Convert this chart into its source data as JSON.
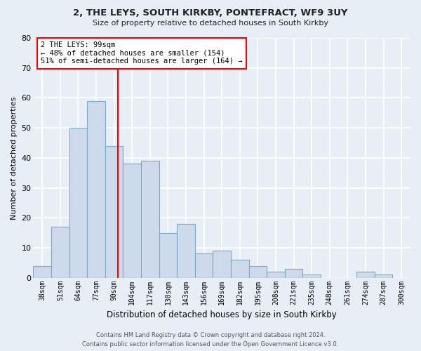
{
  "title_line1": "2, THE LEYS, SOUTH KIRKBY, PONTEFRACT, WF9 3UY",
  "title_line2": "Size of property relative to detached houses in South Kirkby",
  "xlabel": "Distribution of detached houses by size in South Kirkby",
  "ylabel": "Number of detached properties",
  "bar_labels": [
    "38sqm",
    "51sqm",
    "64sqm",
    "77sqm",
    "90sqm",
    "104sqm",
    "117sqm",
    "130sqm",
    "143sqm",
    "156sqm",
    "169sqm",
    "182sqm",
    "195sqm",
    "208sqm",
    "221sqm",
    "235sqm",
    "248sqm",
    "261sqm",
    "274sqm",
    "287sqm",
    "300sqm"
  ],
  "bar_values": [
    4,
    17,
    50,
    59,
    44,
    38,
    39,
    15,
    18,
    8,
    9,
    6,
    4,
    2,
    3,
    1,
    0,
    0,
    2,
    1,
    0
  ],
  "bar_color": "#ccdaeb",
  "bar_edge_color": "#7aaac8",
  "ylim": [
    0,
    80
  ],
  "yticks": [
    0,
    10,
    20,
    30,
    40,
    50,
    60,
    70,
    80
  ],
  "marker_label": "2 THE LEYS: 99sqm",
  "annotation_line1": "← 48% of detached houses are smaller (154)",
  "annotation_line2": "51% of semi-detached houses are larger (164) →",
  "footer_line1": "Contains HM Land Registry data © Crown copyright and database right 2024.",
  "footer_line2": "Contains public sector information licensed under the Open Government Licence v3.0.",
  "bg_color": "#e8eef5",
  "plot_bg_color": "#e8eef5",
  "grid_color": "#ffffff"
}
